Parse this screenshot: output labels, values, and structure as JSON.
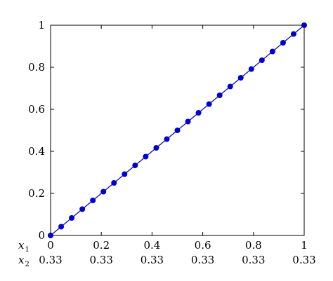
{
  "chart_data": {
    "type": "line",
    "title": "",
    "xlabel": "",
    "ylabel": "",
    "xlim": [
      0,
      1
    ],
    "ylim": [
      0,
      1
    ],
    "grid": false,
    "legend": "none",
    "x_ticks": [
      0,
      0.2,
      0.4,
      0.6,
      0.8,
      1
    ],
    "x_tick_labels": [
      "0",
      "0.2",
      "0.4",
      "0.6",
      "0.8",
      "1"
    ],
    "y_ticks": [
      0,
      0.2,
      0.4,
      0.6,
      0.8,
      1
    ],
    "y_tick_labels": [
      "0",
      "0.2",
      "0.4",
      "0.6",
      "0.8",
      "1"
    ],
    "extra_tick_rows": [
      {
        "label": "x",
        "sub": "1",
        "values": [
          "0",
          "0.2",
          "0.4",
          "0.6",
          "0.8",
          "1"
        ]
      },
      {
        "label": "x",
        "sub": "2",
        "values": [
          "0.33",
          "0.33",
          "0.33",
          "0.33",
          "0.33",
          "0.33"
        ]
      }
    ],
    "series": [
      {
        "color": "#0000cc",
        "marker": "circle",
        "x": [
          0,
          0.0417,
          0.0833,
          0.125,
          0.1667,
          0.2083,
          0.25,
          0.2917,
          0.3333,
          0.375,
          0.4167,
          0.4583,
          0.5,
          0.5417,
          0.5833,
          0.625,
          0.6667,
          0.7083,
          0.75,
          0.7917,
          0.8333,
          0.875,
          0.9167,
          0.9583,
          1
        ],
        "y": [
          0,
          0.0417,
          0.0833,
          0.125,
          0.1667,
          0.2083,
          0.25,
          0.2917,
          0.3333,
          0.375,
          0.4167,
          0.4583,
          0.5,
          0.5417,
          0.5833,
          0.625,
          0.6667,
          0.7083,
          0.75,
          0.7917,
          0.8333,
          0.875,
          0.9167,
          0.9583,
          1
        ]
      }
    ]
  }
}
